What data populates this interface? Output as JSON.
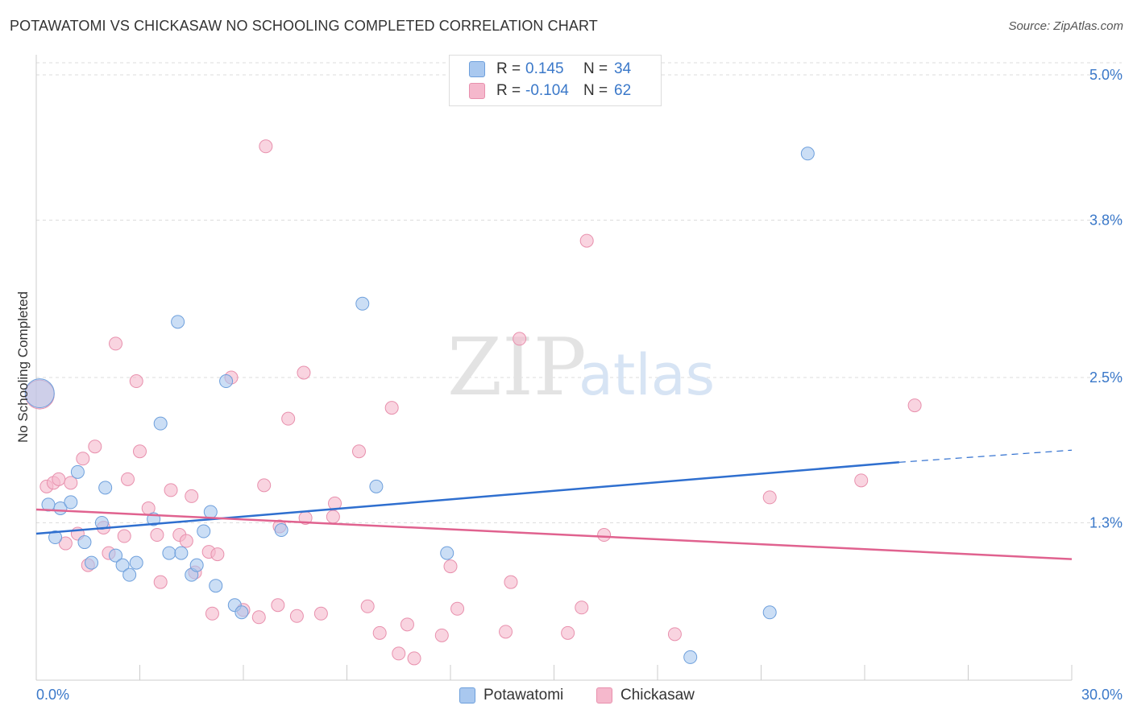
{
  "header": {
    "title": "POTAWATOMI VS CHICKASAW NO SCHOOLING COMPLETED CORRELATION CHART",
    "source": "Source: ZipAtlas.com"
  },
  "watermark": {
    "zip": "ZIP",
    "atlas": "atlas"
  },
  "legend": {
    "rows": [
      {
        "r_label": "R =",
        "r_value": "0.145",
        "n_label": "N =",
        "n_value": "34",
        "color": "#a9c8ef"
      },
      {
        "r_label": "R =",
        "r_value": "-0.104",
        "n_label": "N =",
        "n_value": "62",
        "color": "#f5b8cc"
      }
    ]
  },
  "bottom_legend": [
    {
      "label": "Potawatomi",
      "color": "#a9c8ef"
    },
    {
      "label": "Chickasaw",
      "color": "#f5b8cc"
    }
  ],
  "chart_data": {
    "type": "scatter",
    "title": "POTAWATOMI VS CHICKASAW NO SCHOOLING COMPLETED CORRELATION CHART",
    "xlabel": "",
    "ylabel": "No Schooling Completed",
    "xlim": [
      0,
      30
    ],
    "ylim": [
      0,
      5.1
    ],
    "x_tick_labels": [
      "0.0%",
      "30.0%"
    ],
    "y_ticks": [
      1.3,
      2.5,
      3.8,
      5.0
    ],
    "y_tick_labels": [
      "1.3%",
      "2.5%",
      "3.8%",
      "5.0%"
    ],
    "grid": true,
    "series": [
      {
        "name": "Potawatomi",
        "color": "#a9c8ef",
        "stroke": "#6d9fdc",
        "trend": {
          "x1": 0,
          "y1": 1.21,
          "x2": 25,
          "y2": 1.8,
          "dash_to_x": 30,
          "dash_to_y": 1.9,
          "color": "#2f6fcf"
        },
        "points": [
          [
            0.35,
            1.45
          ],
          [
            0.7,
            1.42
          ],
          [
            0.55,
            1.18
          ],
          [
            1.0,
            1.47
          ],
          [
            1.2,
            1.72
          ],
          [
            1.4,
            1.14
          ],
          [
            1.6,
            0.97
          ],
          [
            1.9,
            1.3
          ],
          [
            2.0,
            1.59
          ],
          [
            2.3,
            1.03
          ],
          [
            2.5,
            0.95
          ],
          [
            2.7,
            0.87
          ],
          [
            2.9,
            0.97
          ],
          [
            3.4,
            1.33
          ],
          [
            3.6,
            2.12
          ],
          [
            3.85,
            1.05
          ],
          [
            4.1,
            2.96
          ],
          [
            4.2,
            1.05
          ],
          [
            4.5,
            0.87
          ],
          [
            4.65,
            0.95
          ],
          [
            4.85,
            1.23
          ],
          [
            5.05,
            1.39
          ],
          [
            5.2,
            0.78
          ],
          [
            5.5,
            2.47
          ],
          [
            5.75,
            0.62
          ],
          [
            5.95,
            0.56
          ],
          [
            7.1,
            1.24
          ],
          [
            9.45,
            3.11
          ],
          [
            9.85,
            1.6
          ],
          [
            11.9,
            1.05
          ],
          [
            21.25,
            0.56
          ],
          [
            22.35,
            4.35
          ],
          [
            18.95,
            0.19
          ]
        ],
        "large_point": [
          0.1,
          2.37
        ]
      },
      {
        "name": "Chickasaw",
        "color": "#f5b8cc",
        "stroke": "#e890ad",
        "trend": {
          "x1": 0,
          "y1": 1.41,
          "x2": 30,
          "y2": 1.0,
          "color": "#e0628f"
        },
        "points": [
          [
            0.3,
            1.6
          ],
          [
            0.5,
            1.63
          ],
          [
            0.65,
            1.66
          ],
          [
            0.85,
            1.13
          ],
          [
            1.0,
            1.63
          ],
          [
            1.2,
            1.21
          ],
          [
            1.35,
            1.83
          ],
          [
            1.5,
            0.95
          ],
          [
            1.7,
            1.93
          ],
          [
            1.95,
            1.26
          ],
          [
            2.1,
            1.05
          ],
          [
            2.3,
            2.78
          ],
          [
            2.55,
            1.19
          ],
          [
            2.65,
            1.66
          ],
          [
            2.9,
            2.47
          ],
          [
            3.0,
            1.89
          ],
          [
            3.25,
            1.42
          ],
          [
            3.5,
            1.2
          ],
          [
            3.6,
            0.81
          ],
          [
            3.9,
            1.57
          ],
          [
            4.15,
            1.2
          ],
          [
            4.35,
            1.15
          ],
          [
            4.5,
            1.52
          ],
          [
            4.6,
            0.89
          ],
          [
            5.0,
            1.06
          ],
          [
            5.1,
            0.55
          ],
          [
            5.25,
            1.04
          ],
          [
            5.65,
            2.5
          ],
          [
            6.0,
            0.58
          ],
          [
            6.45,
            0.52
          ],
          [
            6.6,
            1.61
          ],
          [
            6.65,
            4.41
          ],
          [
            7.0,
            0.62
          ],
          [
            7.05,
            1.27
          ],
          [
            7.3,
            2.16
          ],
          [
            7.55,
            0.53
          ],
          [
            7.75,
            2.54
          ],
          [
            7.8,
            1.34
          ],
          [
            8.25,
            0.55
          ],
          [
            8.6,
            1.35
          ],
          [
            8.65,
            1.46
          ],
          [
            9.35,
            1.89
          ],
          [
            9.6,
            0.61
          ],
          [
            9.95,
            0.39
          ],
          [
            10.3,
            2.25
          ],
          [
            10.5,
            0.22
          ],
          [
            10.75,
            0.46
          ],
          [
            10.95,
            0.18
          ],
          [
            11.75,
            0.37
          ],
          [
            12.0,
            0.94
          ],
          [
            12.2,
            0.59
          ],
          [
            13.6,
            0.4
          ],
          [
            13.75,
            0.81
          ],
          [
            14.0,
            2.82
          ],
          [
            15.4,
            0.39
          ],
          [
            15.8,
            0.6
          ],
          [
            15.95,
            3.63
          ],
          [
            16.45,
            1.2
          ],
          [
            18.5,
            0.38
          ],
          [
            21.25,
            1.51
          ],
          [
            23.9,
            1.65
          ],
          [
            25.45,
            2.27
          ]
        ],
        "large_point": [
          0.1,
          2.36
        ]
      }
    ]
  }
}
